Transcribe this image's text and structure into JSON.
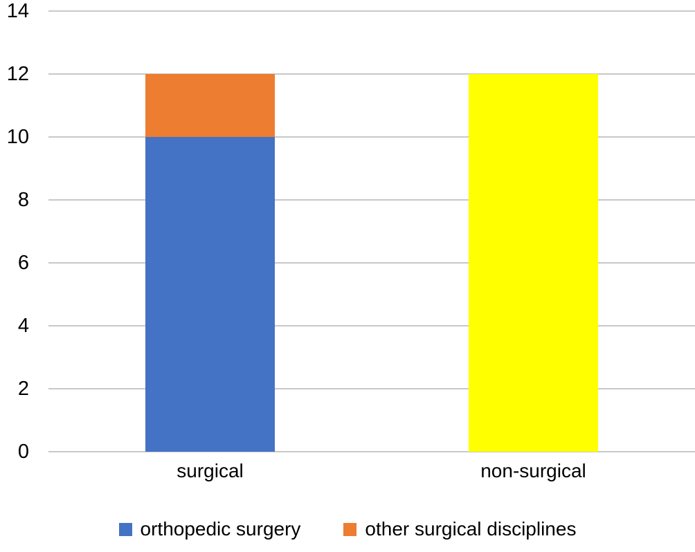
{
  "figure": {
    "background": "#ffffff",
    "text_color": "#000000",
    "gridline_color": "#c8c8c8"
  },
  "chart_data": {
    "type": "bar",
    "stacked": true,
    "title": "",
    "xlabel": "",
    "ylabel": "",
    "categories": [
      "surgical",
      "non-surgical"
    ],
    "series": [
      {
        "name": "orthopedic surgery",
        "color": "#4472C4",
        "values": [
          10,
          0
        ],
        "in_legend": true
      },
      {
        "name": "other surgical disciplines",
        "color": "#ED7D31",
        "values": [
          2,
          0
        ],
        "in_legend": true
      },
      {
        "name": "non-surgical",
        "color": "#FFFF00",
        "values": [
          0,
          12
        ],
        "in_legend": false
      }
    ],
    "ylim": [
      0,
      14
    ],
    "yticks": [
      0,
      2,
      4,
      6,
      8,
      10,
      12,
      14
    ],
    "grid": true,
    "legend_position": "bottom",
    "legend_entries": [
      "orthopedic surgery",
      "other surgical disciplines"
    ]
  }
}
